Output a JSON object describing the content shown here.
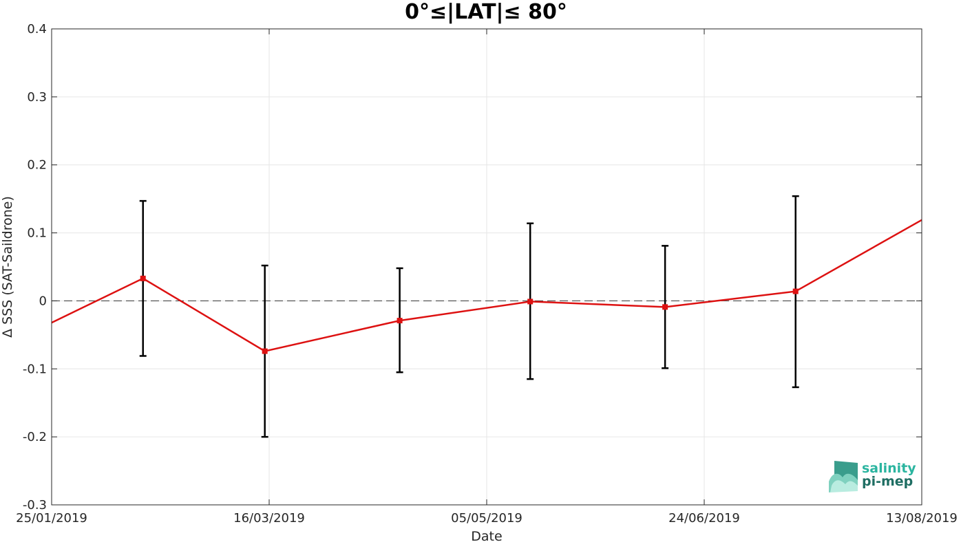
{
  "chart_data": {
    "type": "line",
    "title": "0°≤|LAT|≤ 80°",
    "xlabel": "Date",
    "ylabel": "Δ SSS (SAT-Saildrone)",
    "x_ticks": [
      "25/01/2019",
      "16/03/2019",
      "05/05/2019",
      "24/06/2019",
      "13/08/2019"
    ],
    "y_ticks": [
      "0.4",
      "0.3",
      "0.2",
      "0.1",
      "0",
      "-0.1",
      "-0.2",
      "-0.3"
    ],
    "xlim": [
      "2019-01-25",
      "2019-08-13"
    ],
    "ylim": [
      -0.3,
      0.4
    ],
    "grid": true,
    "reference_line": 0,
    "series": [
      {
        "x": [
          "2019-01-25",
          "2019-02-15",
          "2019-03-15",
          "2019-04-15",
          "2019-05-15",
          "2019-06-15",
          "2019-07-15",
          "2019-08-13"
        ],
        "y": [
          -0.032,
          0.033,
          -0.074,
          -0.029,
          -0.001,
          -0.009,
          0.014,
          0.119
        ],
        "error_low": [
          null,
          -0.081,
          -0.2,
          -0.105,
          -0.115,
          -0.099,
          -0.127,
          null
        ],
        "error_high": [
          null,
          0.147,
          0.052,
          0.048,
          0.114,
          0.081,
          0.154,
          null
        ],
        "color": "#dd1111"
      }
    ],
    "error_bar_color": "#000000",
    "logo": {
      "line1": "salinity",
      "line2": "pi-mep",
      "color1": "#2bb5a0",
      "color2": "#1f6e63"
    }
  }
}
